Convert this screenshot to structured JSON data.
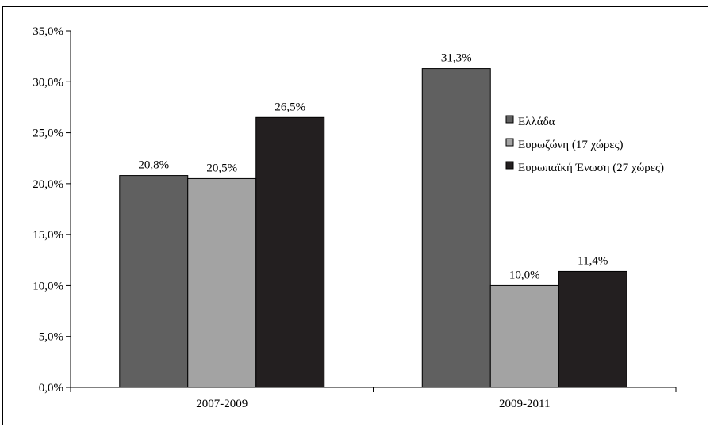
{
  "chart_data": {
    "type": "bar",
    "categories": [
      "2007-2009",
      "2009-2011"
    ],
    "series": [
      {
        "name": "Ελλάδα",
        "values": [
          20.8,
          31.3
        ],
        "labels": [
          "20,8%",
          "31,3%"
        ],
        "color": "#606060"
      },
      {
        "name": "Ευρωζώνη (17 χώρες)",
        "values": [
          20.5,
          10.0
        ],
        "labels": [
          "20,5%",
          "10,0%"
        ],
        "color": "#a3a3a3"
      },
      {
        "name": "Ευρωπαϊκή Ένωση (27 χώρες)",
        "values": [
          26.5,
          11.4
        ],
        "labels": [
          "26,5%",
          "11,4%"
        ],
        "color": "#231f20"
      }
    ],
    "ylim": [
      0,
      35
    ],
    "yticks": [
      0,
      5,
      10,
      15,
      20,
      25,
      30,
      35
    ],
    "ytick_labels": [
      "0,0%",
      "5,0%",
      "10,0%",
      "15,0%",
      "20,0%",
      "25,0%",
      "30,0%",
      "35,0%"
    ],
    "xlabel": "",
    "ylabel": "",
    "title": "",
    "grid": false,
    "legend_position": "right"
  }
}
